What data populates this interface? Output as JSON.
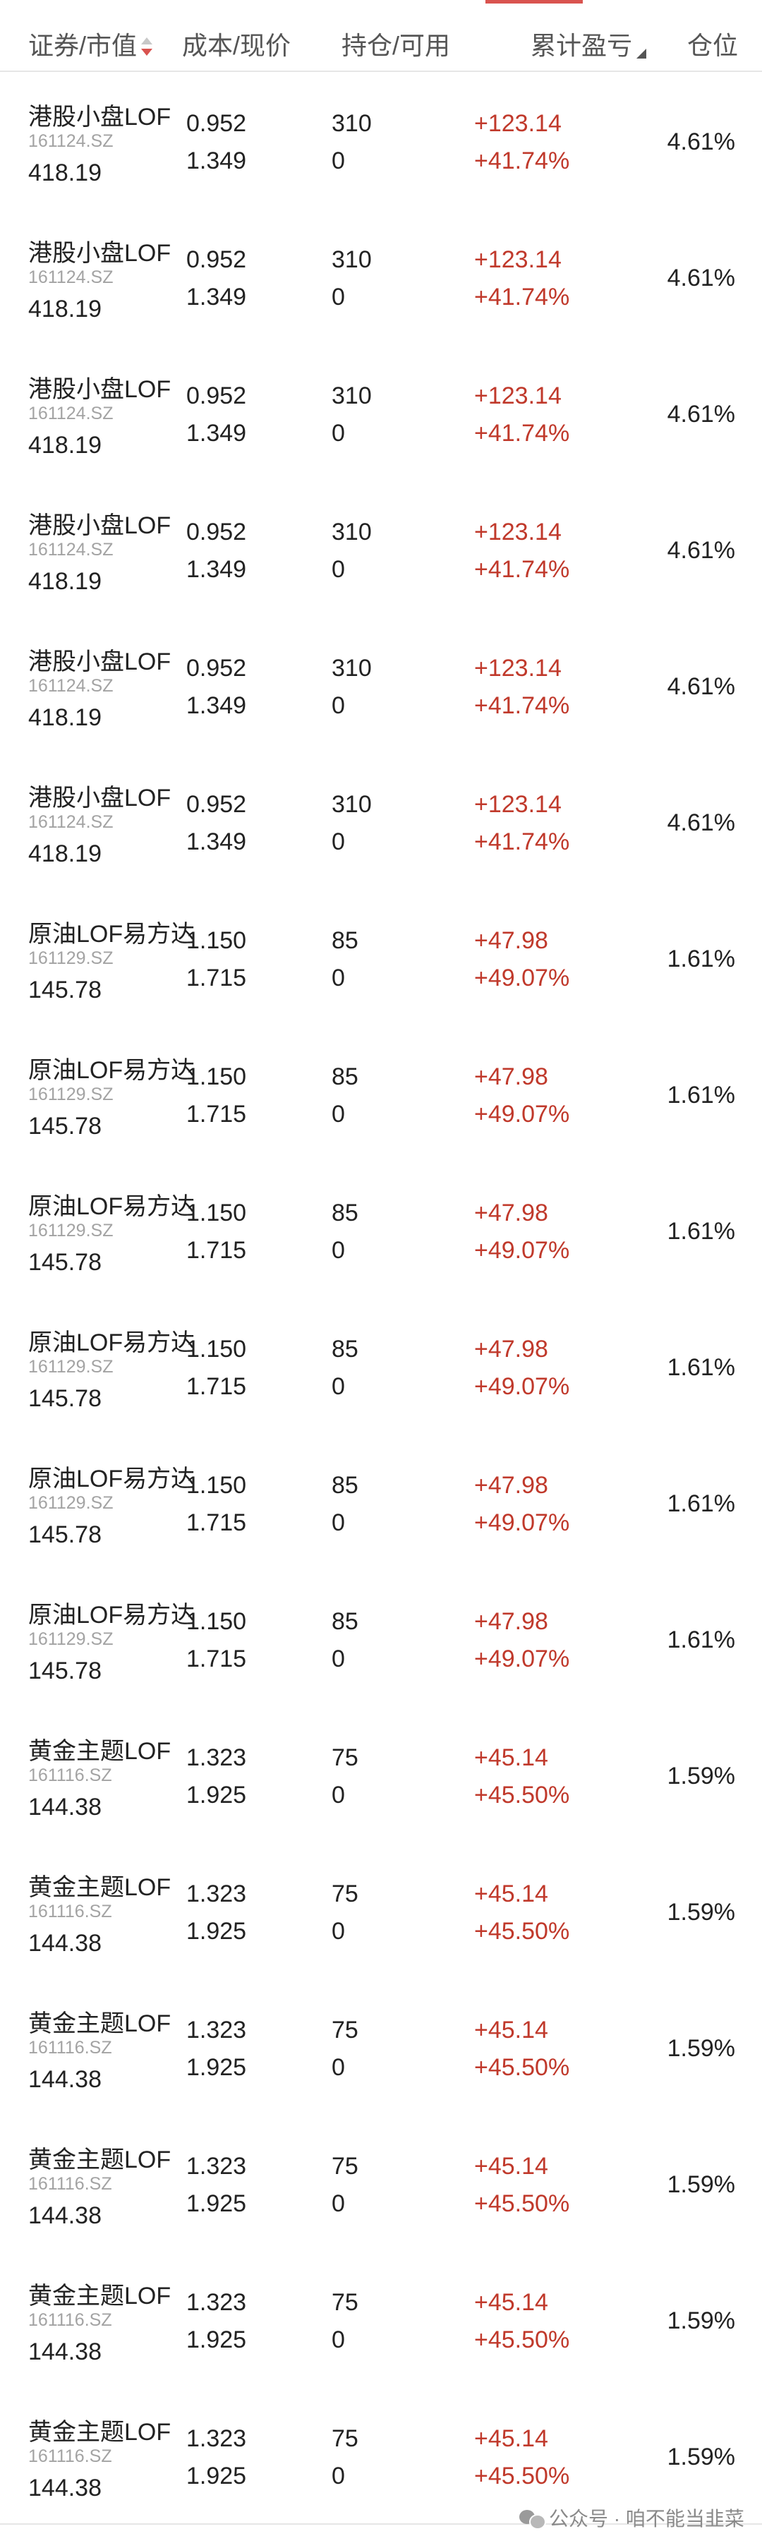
{
  "header": {
    "col_security": "证券/市值",
    "col_cost": "成本/现价",
    "col_holding": "持仓/可用",
    "col_pl": "累计盈亏",
    "col_position": "仓位"
  },
  "rows": [
    {
      "name": "港股小盘LOF",
      "code": "161124.SZ",
      "market_value": "418.19",
      "cost": "0.952",
      "price": "1.349",
      "holding": "310",
      "available": "0",
      "pl": "+123.14",
      "pl_pct": "+41.74%",
      "position": "4.61%"
    },
    {
      "name": "港股小盘LOF",
      "code": "161124.SZ",
      "market_value": "418.19",
      "cost": "0.952",
      "price": "1.349",
      "holding": "310",
      "available": "0",
      "pl": "+123.14",
      "pl_pct": "+41.74%",
      "position": "4.61%"
    },
    {
      "name": "港股小盘LOF",
      "code": "161124.SZ",
      "market_value": "418.19",
      "cost": "0.952",
      "price": "1.349",
      "holding": "310",
      "available": "0",
      "pl": "+123.14",
      "pl_pct": "+41.74%",
      "position": "4.61%"
    },
    {
      "name": "港股小盘LOF",
      "code": "161124.SZ",
      "market_value": "418.19",
      "cost": "0.952",
      "price": "1.349",
      "holding": "310",
      "available": "0",
      "pl": "+123.14",
      "pl_pct": "+41.74%",
      "position": "4.61%"
    },
    {
      "name": "港股小盘LOF",
      "code": "161124.SZ",
      "market_value": "418.19",
      "cost": "0.952",
      "price": "1.349",
      "holding": "310",
      "available": "0",
      "pl": "+123.14",
      "pl_pct": "+41.74%",
      "position": "4.61%"
    },
    {
      "name": "港股小盘LOF",
      "code": "161124.SZ",
      "market_value": "418.19",
      "cost": "0.952",
      "price": "1.349",
      "holding": "310",
      "available": "0",
      "pl": "+123.14",
      "pl_pct": "+41.74%",
      "position": "4.61%"
    },
    {
      "name": "原油LOF易方达",
      "code": "161129.SZ",
      "market_value": "145.78",
      "cost": "1.150",
      "price": "1.715",
      "holding": "85",
      "available": "0",
      "pl": "+47.98",
      "pl_pct": "+49.07%",
      "position": "1.61%"
    },
    {
      "name": "原油LOF易方达",
      "code": "161129.SZ",
      "market_value": "145.78",
      "cost": "1.150",
      "price": "1.715",
      "holding": "85",
      "available": "0",
      "pl": "+47.98",
      "pl_pct": "+49.07%",
      "position": "1.61%"
    },
    {
      "name": "原油LOF易方达",
      "code": "161129.SZ",
      "market_value": "145.78",
      "cost": "1.150",
      "price": "1.715",
      "holding": "85",
      "available": "0",
      "pl": "+47.98",
      "pl_pct": "+49.07%",
      "position": "1.61%"
    },
    {
      "name": "原油LOF易方达",
      "code": "161129.SZ",
      "market_value": "145.78",
      "cost": "1.150",
      "price": "1.715",
      "holding": "85",
      "available": "0",
      "pl": "+47.98",
      "pl_pct": "+49.07%",
      "position": "1.61%"
    },
    {
      "name": "原油LOF易方达",
      "code": "161129.SZ",
      "market_value": "145.78",
      "cost": "1.150",
      "price": "1.715",
      "holding": "85",
      "available": "0",
      "pl": "+47.98",
      "pl_pct": "+49.07%",
      "position": "1.61%"
    },
    {
      "name": "原油LOF易方达",
      "code": "161129.SZ",
      "market_value": "145.78",
      "cost": "1.150",
      "price": "1.715",
      "holding": "85",
      "available": "0",
      "pl": "+47.98",
      "pl_pct": "+49.07%",
      "position": "1.61%"
    },
    {
      "name": "黄金主题LOF",
      "code": "161116.SZ",
      "market_value": "144.38",
      "cost": "1.323",
      "price": "1.925",
      "holding": "75",
      "available": "0",
      "pl": "+45.14",
      "pl_pct": "+45.50%",
      "position": "1.59%"
    },
    {
      "name": "黄金主题LOF",
      "code": "161116.SZ",
      "market_value": "144.38",
      "cost": "1.323",
      "price": "1.925",
      "holding": "75",
      "available": "0",
      "pl": "+45.14",
      "pl_pct": "+45.50%",
      "position": "1.59%"
    },
    {
      "name": "黄金主题LOF",
      "code": "161116.SZ",
      "market_value": "144.38",
      "cost": "1.323",
      "price": "1.925",
      "holding": "75",
      "available": "0",
      "pl": "+45.14",
      "pl_pct": "+45.50%",
      "position": "1.59%"
    },
    {
      "name": "黄金主题LOF",
      "code": "161116.SZ",
      "market_value": "144.38",
      "cost": "1.323",
      "price": "1.925",
      "holding": "75",
      "available": "0",
      "pl": "+45.14",
      "pl_pct": "+45.50%",
      "position": "1.59%"
    },
    {
      "name": "黄金主题LOF",
      "code": "161116.SZ",
      "market_value": "144.38",
      "cost": "1.323",
      "price": "1.925",
      "holding": "75",
      "available": "0",
      "pl": "+45.14",
      "pl_pct": "+45.50%",
      "position": "1.59%"
    },
    {
      "name": "黄金主题LOF",
      "code": "161116.SZ",
      "market_value": "144.38",
      "cost": "1.323",
      "price": "1.925",
      "holding": "75",
      "available": "0",
      "pl": "+45.14",
      "pl_pct": "+45.50%",
      "position": "1.59%"
    }
  ],
  "watermark": "公众号 · 咱不能当韭菜",
  "colors": {
    "gain": "#c0392b",
    "accent": "#d9534f",
    "muted": "#a3a3a3"
  }
}
